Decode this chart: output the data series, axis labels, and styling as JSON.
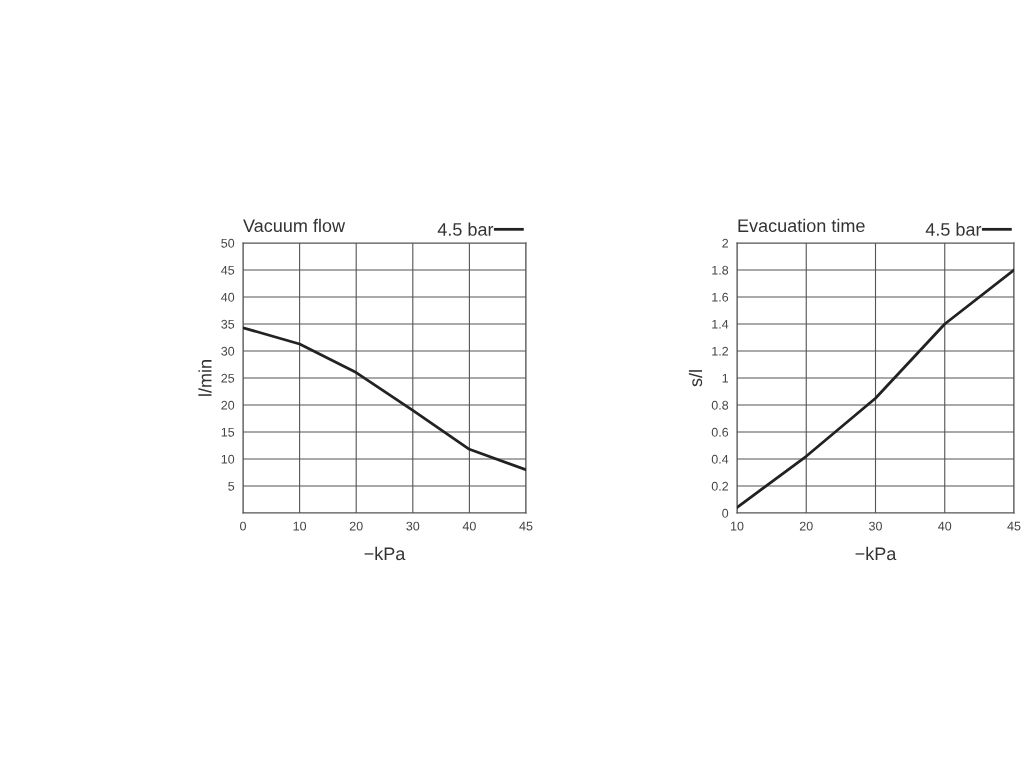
{
  "chart_data": [
    {
      "type": "line",
      "title": "Vacuum flow",
      "xlabel": "−kPa",
      "ylabel": "l/min",
      "categories": [
        "0",
        "10",
        "20",
        "30",
        "40",
        "45"
      ],
      "series": [
        {
          "name": "4.5 bar",
          "color": "#222222",
          "values": [
            34.3,
            31.3,
            26,
            19,
            11.8,
            8
          ]
        }
      ],
      "ylim": [
        0,
        50
      ],
      "yticks": [
        {
          "value": 0,
          "label": null
        },
        5,
        10,
        15,
        20,
        25,
        30,
        35,
        40,
        45,
        50
      ],
      "grid": true,
      "legend": "top right",
      "marker": "none",
      "line_style": "solid"
    },
    {
      "type": "line",
      "title": "Evacuation time",
      "xlabel": "−kPa",
      "ylabel": "s/l",
      "categories": [
        "10",
        "20",
        "30",
        "40",
        "45"
      ],
      "series": [
        {
          "name": "4.5 bar",
          "color": "#222222",
          "values": [
            0.04,
            0.42,
            0.85,
            1.4,
            1.8
          ]
        }
      ],
      "ylim": [
        0,
        2
      ],
      "yticks": [
        0,
        0.2,
        0.4,
        0.6,
        0.8,
        1,
        1.2,
        1.4,
        1.6,
        1.8,
        2
      ],
      "grid": true,
      "legend": "top right",
      "marker": "none",
      "line_style": "solid"
    }
  ]
}
